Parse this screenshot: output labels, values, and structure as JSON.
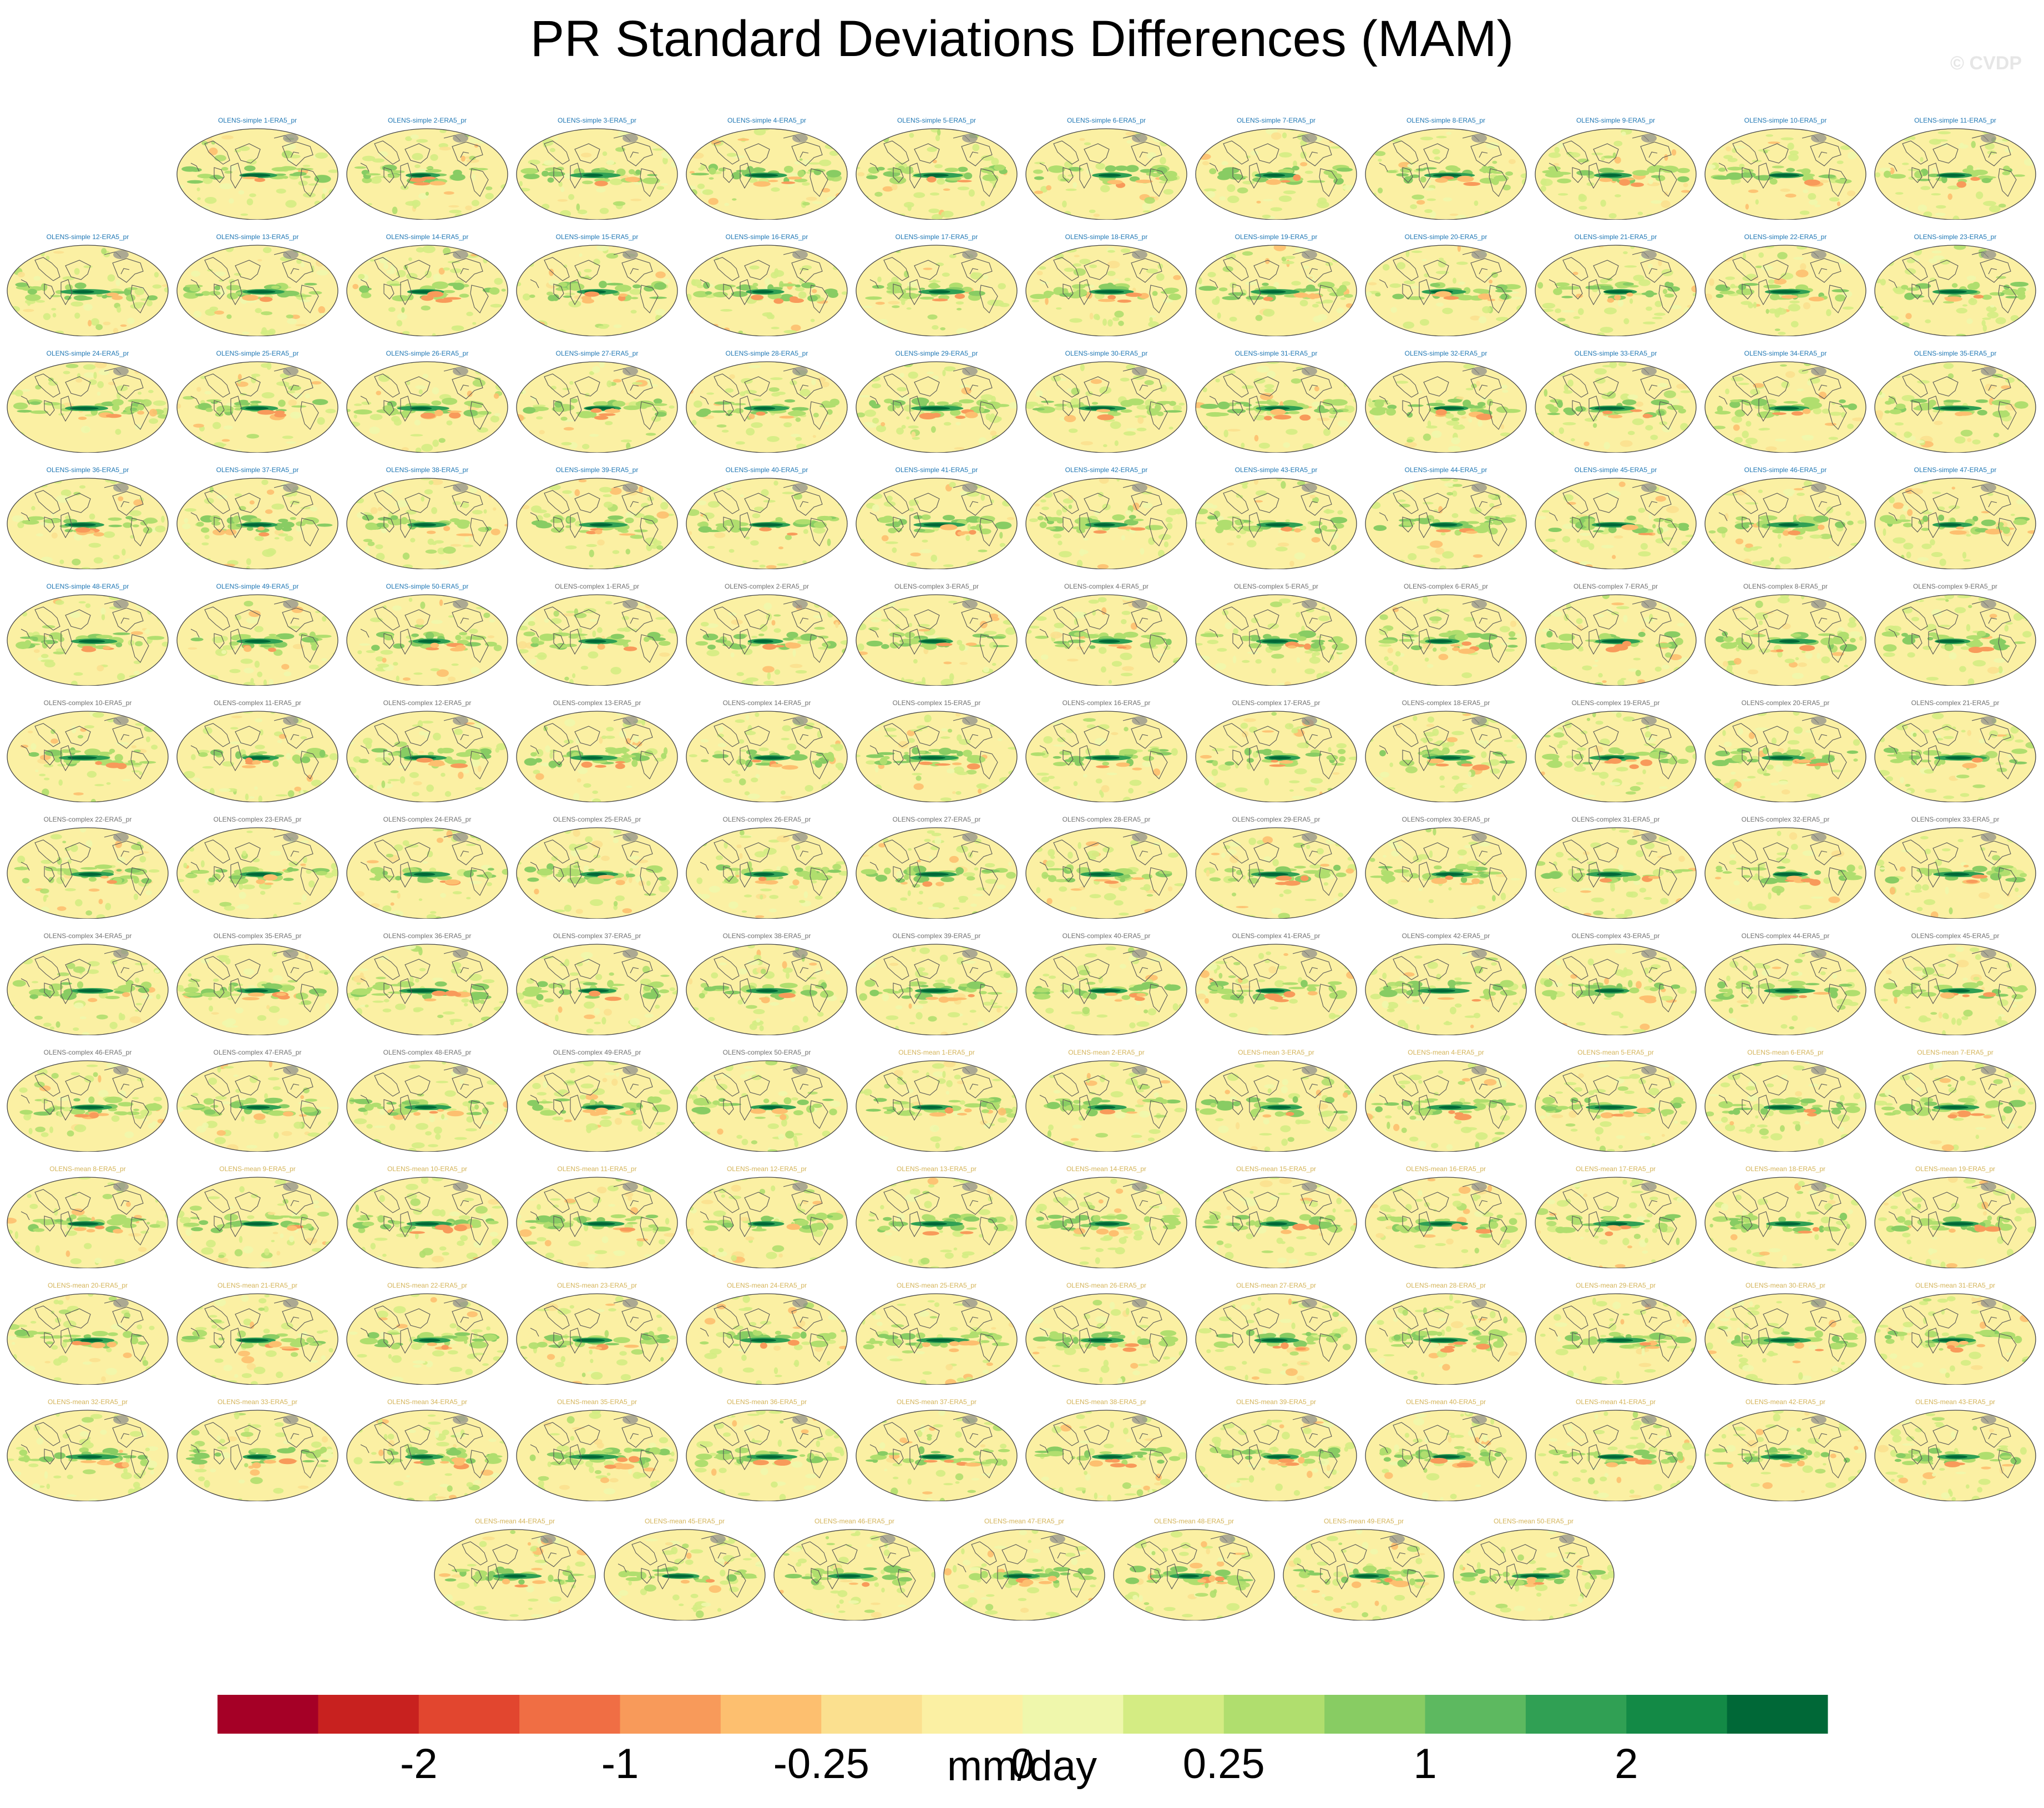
{
  "title": "PR Standard Deviations Differences (MAM)",
  "watermark": "© CVDP",
  "panel_label_colors": {
    "simple": "#1f77b4",
    "complex": "#707070",
    "mean": "#d4b45a"
  },
  "map_colors": {
    "ocean_base": "#fbf0a3",
    "land_outline": "#555555",
    "frame": "#444444"
  },
  "chart_data": {
    "type": "heatmap",
    "projection": "robinson",
    "panel_rows": [
      [
        "OLENS-simple 1-ERA5_pr",
        "OLENS-simple 2-ERA5_pr",
        "OLENS-simple 3-ERA5_pr",
        "OLENS-simple 4-ERA5_pr",
        "OLENS-simple 5-ERA5_pr",
        "OLENS-simple 6-ERA5_pr",
        "OLENS-simple 7-ERA5_pr",
        "OLENS-simple 8-ERA5_pr",
        "OLENS-simple 9-ERA5_pr",
        "OLENS-simple 10-ERA5_pr",
        "OLENS-simple 11-ERA5_pr"
      ],
      [
        "OLENS-simple 12-ERA5_pr",
        "OLENS-simple 13-ERA5_pr",
        "OLENS-simple 14-ERA5_pr",
        "OLENS-simple 15-ERA5_pr",
        "OLENS-simple 16-ERA5_pr",
        "OLENS-simple 17-ERA5_pr",
        "OLENS-simple 18-ERA5_pr",
        "OLENS-simple 19-ERA5_pr",
        "OLENS-simple 20-ERA5_pr",
        "OLENS-simple 21-ERA5_pr",
        "OLENS-simple 22-ERA5_pr",
        "OLENS-simple 23-ERA5_pr"
      ],
      [
        "OLENS-simple 24-ERA5_pr",
        "OLENS-simple 25-ERA5_pr",
        "OLENS-simple 26-ERA5_pr",
        "OLENS-simple 27-ERA5_pr",
        "OLENS-simple 28-ERA5_pr",
        "OLENS-simple 29-ERA5_pr",
        "OLENS-simple 30-ERA5_pr",
        "OLENS-simple 31-ERA5_pr",
        "OLENS-simple 32-ERA5_pr",
        "OLENS-simple 33-ERA5_pr",
        "OLENS-simple 34-ERA5_pr",
        "OLENS-simple 35-ERA5_pr"
      ],
      [
        "OLENS-simple 36-ERA5_pr",
        "OLENS-simple 37-ERA5_pr",
        "OLENS-simple 38-ERA5_pr",
        "OLENS-simple 39-ERA5_pr",
        "OLENS-simple 40-ERA5_pr",
        "OLENS-simple 41-ERA5_pr",
        "OLENS-simple 42-ERA5_pr",
        "OLENS-simple 43-ERA5_pr",
        "OLENS-simple 44-ERA5_pr",
        "OLENS-simple 45-ERA5_pr",
        "OLENS-simple 46-ERA5_pr",
        "OLENS-simple 47-ERA5_pr"
      ],
      [
        "OLENS-simple 48-ERA5_pr",
        "OLENS-simple 49-ERA5_pr",
        "OLENS-simple 50-ERA5_pr",
        "OLENS-complex 1-ERA5_pr",
        "OLENS-complex 2-ERA5_pr",
        "OLENS-complex 3-ERA5_pr",
        "OLENS-complex 4-ERA5_pr",
        "OLENS-complex 5-ERA5_pr",
        "OLENS-complex 6-ERA5_pr",
        "OLENS-complex 7-ERA5_pr",
        "OLENS-complex 8-ERA5_pr",
        "OLENS-complex 9-ERA5_pr"
      ],
      [
        "OLENS-complex 10-ERA5_pr",
        "OLENS-complex 11-ERA5_pr",
        "OLENS-complex 12-ERA5_pr",
        "OLENS-complex 13-ERA5_pr",
        "OLENS-complex 14-ERA5_pr",
        "OLENS-complex 15-ERA5_pr",
        "OLENS-complex 16-ERA5_pr",
        "OLENS-complex 17-ERA5_pr",
        "OLENS-complex 18-ERA5_pr",
        "OLENS-complex 19-ERA5_pr",
        "OLENS-complex 20-ERA5_pr",
        "OLENS-complex 21-ERA5_pr"
      ],
      [
        "OLENS-complex 22-ERA5_pr",
        "OLENS-complex 23-ERA5_pr",
        "OLENS-complex 24-ERA5_pr",
        "OLENS-complex 25-ERA5_pr",
        "OLENS-complex 26-ERA5_pr",
        "OLENS-complex 27-ERA5_pr",
        "OLENS-complex 28-ERA5_pr",
        "OLENS-complex 29-ERA5_pr",
        "OLENS-complex 30-ERA5_pr",
        "OLENS-complex 31-ERA5_pr",
        "OLENS-complex 32-ERA5_pr",
        "OLENS-complex 33-ERA5_pr"
      ],
      [
        "OLENS-complex 34-ERA5_pr",
        "OLENS-complex 35-ERA5_pr",
        "OLENS-complex 36-ERA5_pr",
        "OLENS-complex 37-ERA5_pr",
        "OLENS-complex 38-ERA5_pr",
        "OLENS-complex 39-ERA5_pr",
        "OLENS-complex 40-ERA5_pr",
        "OLENS-complex 41-ERA5_pr",
        "OLENS-complex 42-ERA5_pr",
        "OLENS-complex 43-ERA5_pr",
        "OLENS-complex 44-ERA5_pr",
        "OLENS-complex 45-ERA5_pr"
      ],
      [
        "OLENS-complex 46-ERA5_pr",
        "OLENS-complex 47-ERA5_pr",
        "OLENS-complex 48-ERA5_pr",
        "OLENS-complex 49-ERA5_pr",
        "OLENS-complex 50-ERA5_pr",
        "OLENS-mean 1-ERA5_pr",
        "OLENS-mean 2-ERA5_pr",
        "OLENS-mean 3-ERA5_pr",
        "OLENS-mean 4-ERA5_pr",
        "OLENS-mean 5-ERA5_pr",
        "OLENS-mean 6-ERA5_pr",
        "OLENS-mean 7-ERA5_pr"
      ],
      [
        "OLENS-mean 8-ERA5_pr",
        "OLENS-mean 9-ERA5_pr",
        "OLENS-mean 10-ERA5_pr",
        "OLENS-mean 11-ERA5_pr",
        "OLENS-mean 12-ERA5_pr",
        "OLENS-mean 13-ERA5_pr",
        "OLENS-mean 14-ERA5_pr",
        "OLENS-mean 15-ERA5_pr",
        "OLENS-mean 16-ERA5_pr",
        "OLENS-mean 17-ERA5_pr",
        "OLENS-mean 18-ERA5_pr",
        "OLENS-mean 19-ERA5_pr"
      ],
      [
        "OLENS-mean 20-ERA5_pr",
        "OLENS-mean 21-ERA5_pr",
        "OLENS-mean 22-ERA5_pr",
        "OLENS-mean 23-ERA5_pr",
        "OLENS-mean 24-ERA5_pr",
        "OLENS-mean 25-ERA5_pr",
        "OLENS-mean 26-ERA5_pr",
        "OLENS-mean 27-ERA5_pr",
        "OLENS-mean 28-ERA5_pr",
        "OLENS-mean 29-ERA5_pr",
        "OLENS-mean 30-ERA5_pr",
        "OLENS-mean 31-ERA5_pr"
      ],
      [
        "OLENS-mean 32-ERA5_pr",
        "OLENS-mean 33-ERA5_pr",
        "OLENS-mean 34-ERA5_pr",
        "OLENS-mean 35-ERA5_pr",
        "OLENS-mean 36-ERA5_pr",
        "OLENS-mean 37-ERA5_pr",
        "OLENS-mean 38-ERA5_pr",
        "OLENS-mean 39-ERA5_pr",
        "OLENS-mean 40-ERA5_pr",
        "OLENS-mean 41-ERA5_pr",
        "OLENS-mean 42-ERA5_pr",
        "OLENS-mean 43-ERA5_pr"
      ],
      [
        "OLENS-mean 44-ERA5_pr",
        "OLENS-mean 45-ERA5_pr",
        "OLENS-mean 46-ERA5_pr",
        "OLENS-mean 47-ERA5_pr",
        "OLENS-mean 48-ERA5_pr",
        "OLENS-mean 49-ERA5_pr",
        "OLENS-mean 50-ERA5_pr"
      ]
    ],
    "colorbar": {
      "units": "mm/day",
      "tick_labels": [
        "-2",
        "-1",
        "-0.25",
        "0",
        "0.25",
        "1",
        "2"
      ],
      "colors": [
        "#a50026",
        "#c8211f",
        "#e2462f",
        "#f06e44",
        "#f89a5a",
        "#fdbf6f",
        "#fbe08f",
        "#fbf0a3",
        "#eff7ac",
        "#d4ec83",
        "#b0de6e",
        "#88cc63",
        "#5db960",
        "#30a054",
        "#138a46",
        "#006837"
      ]
    }
  }
}
